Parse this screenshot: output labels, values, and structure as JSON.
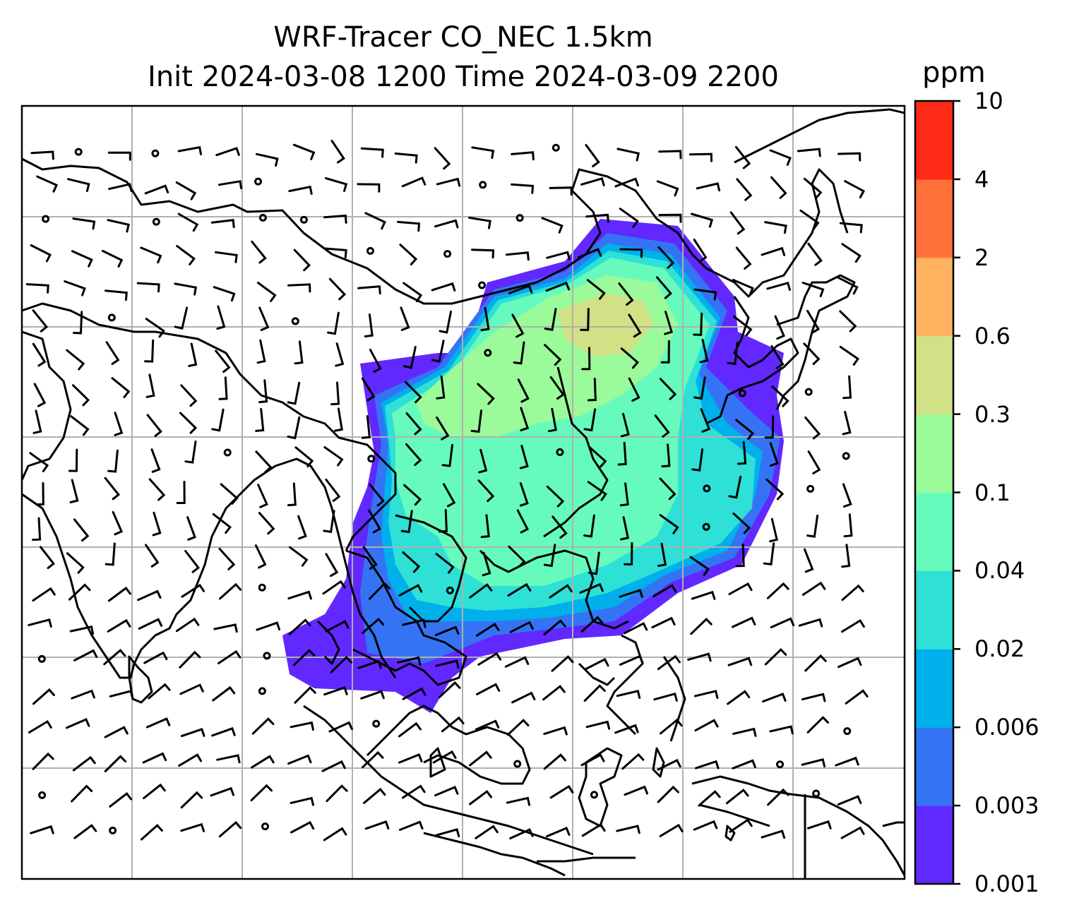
{
  "title": {
    "line1": "WRF-Tracer CO_NEC 1.5km",
    "line2": "Init 2024-03-08 1200 Time 2024-03-09 2200"
  },
  "colorbar": {
    "unit": "ppm",
    "ticks": [
      "0.001",
      "0.003",
      "0.006",
      "0.02",
      "0.04",
      "0.1",
      "0.3",
      "0.6",
      "2",
      "4",
      "10"
    ],
    "colors": [
      "#6128ff",
      "#3474f4",
      "#00b0eb",
      "#2ee0d6",
      "#66fbbd",
      "#9bfa9a",
      "#d0e186",
      "#ffb260",
      "#ff7138",
      "#ff2a17"
    ]
  },
  "map": {
    "field": "CO_NEC tracer concentration",
    "gridlines": true,
    "wind_barbs": true
  }
}
